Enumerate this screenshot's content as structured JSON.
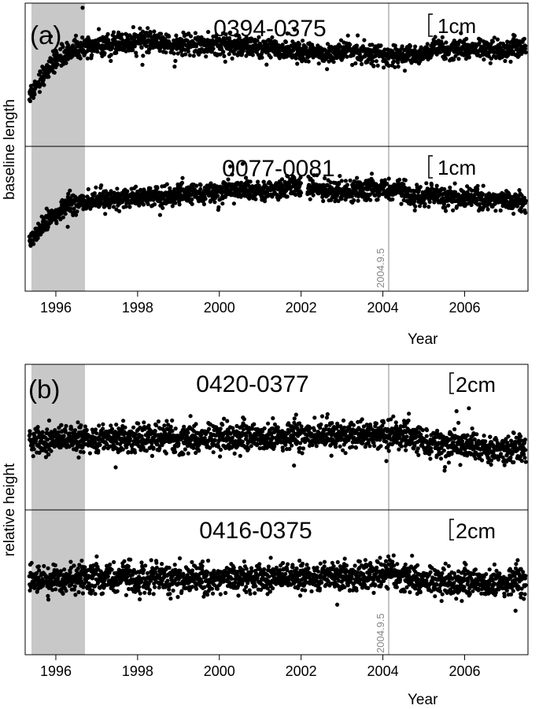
{
  "chart_data": [
    {
      "type": "scatter",
      "panel_label": "(a)",
      "ylabel": "baseline length",
      "xlabel": "Year",
      "xlim": [
        1995.25,
        2007.55
      ],
      "x_ticks": [
        1996,
        1998,
        2000,
        2002,
        2004,
        2006
      ],
      "x_tick_labels": [
        "1996",
        "1998",
        "2000",
        "2002",
        "2004",
        "2006"
      ],
      "shaded_interval": [
        1995.3,
        1996.95
      ],
      "event_line": {
        "x": 2004.69,
        "label": "2004.9.5"
      },
      "series": [
        {
          "title": "0394-0375",
          "scale_label": "1cm",
          "y_unit": "cm",
          "ylim": [
            -3.2,
            1.5
          ],
          "x": [
            1995.35,
            1995.6,
            1995.9,
            1996.2,
            1996.5,
            1996.9,
            1997.3,
            1997.8,
            1998.3,
            1998.8,
            1999.3,
            1999.8,
            2000.3,
            2000.8,
            2001.3,
            2001.8,
            2002.3,
            2002.8,
            2003.3,
            2003.8,
            2004.3,
            2004.8,
            2005.3,
            2005.8,
            2006.3,
            2006.8,
            2007.3,
            2007.5
          ],
          "y": [
            -1.5,
            -1.0,
            -0.5,
            -0.2,
            0.0,
            0.1,
            0.15,
            0.2,
            0.3,
            0.15,
            0.1,
            0.1,
            0.15,
            0.05,
            0.0,
            -0.1,
            -0.15,
            -0.1,
            -0.1,
            -0.15,
            -0.2,
            -0.2,
            -0.05,
            0.0,
            0.0,
            -0.05,
            0.05,
            0.05
          ]
        },
        {
          "title": "0077-0081",
          "scale_label": "1cm",
          "y_unit": "cm",
          "ylim": [
            -2.5,
            1.6
          ],
          "x": [
            1995.35,
            1995.6,
            1995.9,
            1996.2,
            1996.5,
            1996.9,
            1997.3,
            1997.8,
            1998.3,
            1998.8,
            1999.3,
            1999.8,
            2000.3,
            2000.8,
            2001.3,
            2001.8,
            2002.3,
            2002.8,
            2003.3,
            2003.8,
            2004.3,
            2004.8,
            2005.3,
            2005.8,
            2006.3,
            2006.8,
            2007.3,
            2007.5
          ],
          "y": [
            -1.1,
            -0.7,
            -0.4,
            -0.15,
            0.0,
            0.05,
            0.1,
            0.15,
            0.2,
            0.2,
            0.25,
            0.3,
            0.35,
            0.35,
            0.4,
            0.45,
            0.4,
            0.35,
            0.35,
            0.4,
            0.35,
            0.2,
            0.2,
            0.15,
            0.15,
            0.1,
            0.05,
            0.05
          ]
        }
      ]
    },
    {
      "type": "scatter",
      "panel_label": "(b)",
      "ylabel": "relative height",
      "xlabel": "Year",
      "xlim": [
        1995.25,
        2007.55
      ],
      "x_ticks": [
        1996,
        1998,
        2000,
        2002,
        2004,
        2006
      ],
      "x_tick_labels": [
        "1996",
        "1998",
        "2000",
        "2002",
        "2004",
        "2006"
      ],
      "shaded_interval": [
        1995.3,
        1996.95
      ],
      "event_line": {
        "x": 2004.69,
        "label": "2004.9.5"
      },
      "series": [
        {
          "title": "0420-0377",
          "scale_label": "2cm",
          "y_unit": "cm",
          "ylim": [
            -6.0,
            6.5
          ],
          "x": [
            1995.35,
            1995.8,
            1996.3,
            1996.8,
            1997.3,
            1997.8,
            1998.3,
            1998.8,
            1999.3,
            1999.8,
            2000.3,
            2000.8,
            2001.3,
            2001.8,
            2002.3,
            2002.8,
            2003.3,
            2003.8,
            2004.3,
            2004.8,
            2005.3,
            2005.8,
            2006.3,
            2006.8,
            2007.3,
            2007.5
          ],
          "y": [
            0.0,
            0.0,
            0.1,
            0.1,
            0.1,
            0.2,
            0.2,
            0.1,
            0.1,
            0.2,
            0.3,
            0.3,
            0.3,
            0.3,
            0.4,
            0.4,
            0.5,
            0.5,
            0.6,
            0.0,
            -0.3,
            -0.5,
            -0.6,
            -0.7,
            -0.8,
            -0.9
          ]
        },
        {
          "title": "0416-0375",
          "scale_label": "2cm",
          "y_unit": "cm",
          "ylim": [
            -6.5,
            6.0
          ],
          "x": [
            1995.35,
            1995.8,
            1996.3,
            1996.8,
            1997.3,
            1997.8,
            1998.3,
            1998.8,
            1999.3,
            1999.8,
            2000.3,
            2000.8,
            2001.3,
            2001.8,
            2002.3,
            2002.8,
            2003.3,
            2003.8,
            2004.3,
            2004.8,
            2005.3,
            2005.8,
            2006.3,
            2006.8,
            2007.3,
            2007.5
          ],
          "y": [
            0.0,
            0.0,
            0.1,
            0.1,
            0.1,
            0.1,
            0.1,
            0.1,
            0.1,
            0.1,
            0.2,
            0.2,
            0.2,
            0.2,
            0.2,
            0.3,
            0.3,
            0.4,
            0.5,
            0.0,
            -0.2,
            -0.2,
            -0.2,
            -0.3,
            -0.2,
            -0.2
          ]
        }
      ]
    }
  ]
}
